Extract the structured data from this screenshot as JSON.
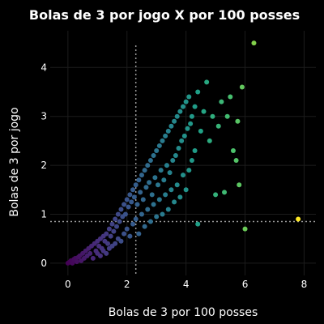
{
  "chart_data": {
    "type": "scatter",
    "title": "Bolas de 3 por jogo X por 100 posses",
    "xlabel": "Bolas de 3 por 100 posses",
    "ylabel": "Bolas de 3 por jogo",
    "xlim": [
      -0.6,
      8.4
    ],
    "ylim": [
      -0.25,
      4.75
    ],
    "xticks": [
      0,
      2,
      4,
      6,
      8
    ],
    "yticks": [
      0,
      1,
      2,
      3,
      4
    ],
    "grid": true,
    "colorscale": [
      "#440154",
      "#46327e",
      "#365c8d",
      "#277f8e",
      "#1fa187",
      "#4ac16d",
      "#a0da39",
      "#fde725"
    ],
    "color_range": [
      0,
      7.8
    ],
    "reference_lines": {
      "vertical_x": 2.3,
      "horizontal_y": 0.85
    },
    "points": [
      [
        0,
        0
      ],
      [
        0.05,
        0.02
      ],
      [
        0.1,
        0.05
      ],
      [
        0.15,
        0.0
      ],
      [
        0.2,
        0.08
      ],
      [
        0.25,
        0.1
      ],
      [
        0.3,
        0.03
      ],
      [
        0.35,
        0.12
      ],
      [
        0.4,
        0.15
      ],
      [
        0.45,
        0.05
      ],
      [
        0.5,
        0.2
      ],
      [
        0.55,
        0.1
      ],
      [
        0.6,
        0.25
      ],
      [
        0.65,
        0.15
      ],
      [
        0.7,
        0.3
      ],
      [
        0.75,
        0.2
      ],
      [
        0.8,
        0.35
      ],
      [
        0.85,
        0.1
      ],
      [
        0.9,
        0.4
      ],
      [
        0.95,
        0.25
      ],
      [
        1.0,
        0.45
      ],
      [
        1.0,
        0.2
      ],
      [
        1.05,
        0.35
      ],
      [
        1.1,
        0.5
      ],
      [
        1.1,
        0.15
      ],
      [
        1.15,
        0.3
      ],
      [
        1.2,
        0.55
      ],
      [
        1.2,
        0.25
      ],
      [
        1.25,
        0.45
      ],
      [
        1.3,
        0.6
      ],
      [
        1.3,
        0.2
      ],
      [
        1.35,
        0.4
      ],
      [
        1.4,
        0.7
      ],
      [
        1.4,
        0.3
      ],
      [
        1.45,
        0.55
      ],
      [
        1.5,
        0.8
      ],
      [
        1.5,
        0.35
      ],
      [
        1.55,
        0.65
      ],
      [
        1.6,
        0.9
      ],
      [
        1.6,
        0.4
      ],
      [
        1.65,
        0.75
      ],
      [
        1.7,
        1.0
      ],
      [
        1.7,
        0.5
      ],
      [
        1.75,
        0.85
      ],
      [
        1.8,
        1.1
      ],
      [
        1.8,
        0.45
      ],
      [
        1.85,
        0.95
      ],
      [
        1.9,
        1.2
      ],
      [
        1.9,
        0.6
      ],
      [
        1.95,
        1.0
      ],
      [
        2.0,
        1.3
      ],
      [
        2.0,
        0.7
      ],
      [
        2.05,
        1.15
      ],
      [
        2.1,
        1.4
      ],
      [
        2.1,
        0.55
      ],
      [
        2.15,
        1.25
      ],
      [
        2.2,
        1.5
      ],
      [
        2.2,
        0.8
      ],
      [
        2.25,
        1.35
      ],
      [
        2.3,
        1.6
      ],
      [
        2.3,
        0.9
      ],
      [
        2.35,
        1.2
      ],
      [
        2.4,
        1.7
      ],
      [
        2.4,
        0.6
      ],
      [
        2.45,
        1.45
      ],
      [
        2.5,
        1.8
      ],
      [
        2.5,
        1.0
      ],
      [
        2.55,
        1.3
      ],
      [
        2.6,
        1.9
      ],
      [
        2.6,
        0.75
      ],
      [
        2.65,
        1.55
      ],
      [
        2.7,
        2.0
      ],
      [
        2.7,
        1.1
      ],
      [
        2.75,
        1.65
      ],
      [
        2.8,
        2.1
      ],
      [
        2.8,
        0.85
      ],
      [
        2.85,
        1.4
      ],
      [
        2.9,
        2.2
      ],
      [
        2.9,
        1.2
      ],
      [
        2.95,
        1.75
      ],
      [
        3.0,
        2.3
      ],
      [
        3.0,
        0.95
      ],
      [
        3.05,
        1.6
      ],
      [
        3.1,
        2.4
      ],
      [
        3.1,
        1.3
      ],
      [
        3.15,
        1.9
      ],
      [
        3.2,
        2.5
      ],
      [
        3.2,
        1.0
      ],
      [
        3.25,
        1.7
      ],
      [
        3.3,
        2.6
      ],
      [
        3.3,
        1.4
      ],
      [
        3.35,
        2.0
      ],
      [
        3.4,
        2.7
      ],
      [
        3.4,
        1.1
      ],
      [
        3.45,
        1.85
      ],
      [
        3.5,
        2.8
      ],
      [
        3.5,
        1.5
      ],
      [
        3.55,
        2.1
      ],
      [
        3.6,
        2.9
      ],
      [
        3.6,
        1.25
      ],
      [
        3.65,
        2.2
      ],
      [
        3.7,
        3.0
      ],
      [
        3.7,
        1.6
      ],
      [
        3.75,
        2.35
      ],
      [
        3.8,
        3.1
      ],
      [
        3.8,
        1.35
      ],
      [
        3.85,
        2.5
      ],
      [
        3.9,
        3.2
      ],
      [
        3.9,
        1.8
      ],
      [
        3.95,
        2.6
      ],
      [
        4.0,
        3.3
      ],
      [
        4.0,
        1.5
      ],
      [
        4.05,
        2.75
      ],
      [
        4.1,
        3.4
      ],
      [
        4.1,
        1.9
      ],
      [
        4.15,
        2.85
      ],
      [
        4.2,
        3.0
      ],
      [
        4.2,
        2.1
      ],
      [
        4.3,
        3.2
      ],
      [
        4.3,
        2.3
      ],
      [
        4.4,
        3.5
      ],
      [
        4.4,
        0.8
      ],
      [
        4.5,
        2.7
      ],
      [
        4.6,
        3.1
      ],
      [
        4.7,
        3.7
      ],
      [
        4.8,
        2.5
      ],
      [
        4.9,
        3.0
      ],
      [
        5.0,
        1.4
      ],
      [
        5.1,
        2.8
      ],
      [
        5.2,
        3.3
      ],
      [
        5.3,
        1.45
      ],
      [
        5.4,
        3.0
      ],
      [
        5.5,
        3.4
      ],
      [
        5.6,
        2.3
      ],
      [
        5.7,
        2.1
      ],
      [
        5.75,
        2.9
      ],
      [
        5.8,
        1.6
      ],
      [
        5.9,
        3.6
      ],
      [
        6.0,
        0.7
      ],
      [
        6.3,
        4.5
      ],
      [
        7.8,
        0.9
      ]
    ]
  }
}
